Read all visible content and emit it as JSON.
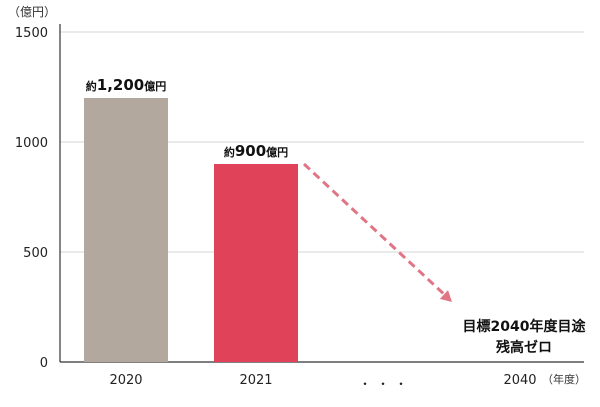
{
  "chart_data": {
    "type": "bar",
    "unit_label": "（億円）",
    "categories": [
      "2020",
      "2021",
      "・・・",
      "2040"
    ],
    "x_axis_suffix": "（年度）",
    "values": [
      1200,
      900,
      null,
      null
    ],
    "data_labels": [
      {
        "prefix": "約",
        "value": "1,200",
        "suffix": "億円"
      },
      {
        "prefix": "約",
        "value": "900",
        "suffix": "億円"
      }
    ],
    "y_ticks": [
      0,
      500,
      1000,
      1500
    ],
    "ylim": [
      0,
      1500
    ],
    "grid": true,
    "annotation": {
      "line1": "目標2040年度目途",
      "line2": "残高ゼロ",
      "arrow_from": {
        "category": "2021",
        "value": 900
      },
      "arrow_to": {
        "category": "2040",
        "value": 200
      }
    },
    "colors": {
      "bar_2020": "#b3a89d",
      "bar_2021": "#e0425a",
      "arrow": "#e07585",
      "grid": "#d4d4d4",
      "axis": "#333333"
    }
  }
}
